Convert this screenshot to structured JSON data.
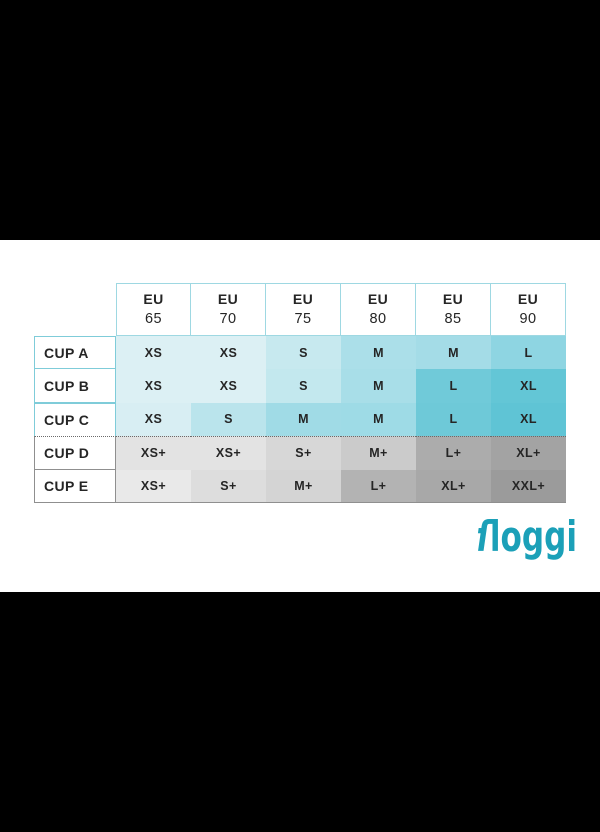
{
  "page": {
    "background": "#ffffff",
    "letterbox_color": "#000000"
  },
  "logo": {
    "text": "sloggi",
    "color": "#1ba0b8"
  },
  "chart_data": {
    "type": "table",
    "title": "sloggi bra size conversion chart",
    "column_headers": [
      {
        "line1": "EU",
        "line2": "65"
      },
      {
        "line1": "EU",
        "line2": "70"
      },
      {
        "line1": "EU",
        "line2": "75"
      },
      {
        "line1": "EU",
        "line2": "80"
      },
      {
        "line1": "EU",
        "line2": "85"
      },
      {
        "line1": "EU",
        "line2": "90"
      }
    ],
    "rows": [
      {
        "label": "CUP A",
        "group": "teal",
        "values": [
          "XS",
          "XS",
          "S",
          "M",
          "M",
          "L"
        ]
      },
      {
        "label": "CUP B",
        "group": "teal",
        "values": [
          "XS",
          "XS",
          "S",
          "M",
          "L",
          "XL"
        ]
      },
      {
        "label": "CUP C",
        "group": "teal",
        "values": [
          "XS",
          "S",
          "M",
          "M",
          "L",
          "XL"
        ]
      },
      {
        "label": "CUP D",
        "group": "gray",
        "values": [
          "XS+",
          "XS+",
          "S+",
          "M+",
          "L+",
          "XL+"
        ]
      },
      {
        "label": "CUP E",
        "group": "gray",
        "values": [
          "XS+",
          "S+",
          "M+",
          "L+",
          "XL+",
          "XXL+"
        ]
      }
    ],
    "cell_colors": [
      [
        "#dcf0f4",
        "#dcf0f4",
        "#c7e9ef",
        "#abdfe9",
        "#a4dce7",
        "#8ed5e2"
      ],
      [
        "#dcf0f4",
        "#dcf0f4",
        "#c3e8ee",
        "#a8dee8",
        "#70cad9",
        "#63c6d6"
      ],
      [
        "#d8eef3",
        "#bae4ec",
        "#a0dbe6",
        "#9edbe6",
        "#6ec9d8",
        "#5fc4d5"
      ],
      [
        "#e3e3e3",
        "#e3e3e3",
        "#d7d7d7",
        "#cbcbcb",
        "#acacac",
        "#a3a3a3"
      ],
      [
        "#e9e9e9",
        "#dddddd",
        "#d4d4d4",
        "#b3b3b3",
        "#a8a8a8",
        "#9b9b9b"
      ]
    ],
    "legend_note": "cell shade darkens with size; teal for cups A-C, gray for cups D-E",
    "divider_between": [
      "CUP C",
      "CUP D"
    ],
    "divider_style": "dotted",
    "text_color": "#252525",
    "header_border_color": "#9ed8e2",
    "teal_label_border_color": "#7fccd9",
    "gray_label_border_color": "#8f8f8f"
  }
}
